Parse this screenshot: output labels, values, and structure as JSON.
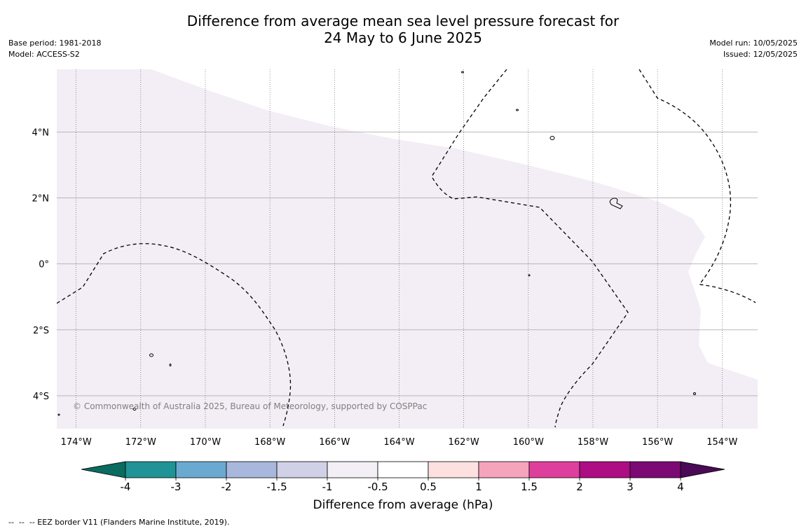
{
  "title_line1": "Difference from average mean sea level pressure forecast for",
  "title_line2": "24 May to 6 June 2025",
  "base_period": "Base period: 1981-2018",
  "model": "Model: ACCESS-S2",
  "model_run": "Model run: 10/05/2025",
  "issued": "Issued: 12/05/2025",
  "map": {
    "lon_range": [
      -174.6,
      -152.9
    ],
    "lat_range": [
      -5.0,
      5.9
    ],
    "lon_ticks": [
      "174°W",
      "172°W",
      "170°W",
      "168°W",
      "166°W",
      "164°W",
      "162°W",
      "160°W",
      "158°W",
      "156°W",
      "154°W"
    ],
    "lat_ticks": [
      "4°N",
      "2°N",
      "0°",
      "2°S",
      "4°S"
    ],
    "shaded_anomaly_range_hPa": "-1 to -0.5",
    "colors": {
      "shade": "#f3edf5",
      "grid": "#b0b0b0",
      "meridian": "#555555"
    }
  },
  "copyright": "© Commonwealth of Australia 2025, Bureau of Meteorology, supported by COSPPac",
  "colorbar": {
    "label": "Difference from average (hPa)",
    "ticks": [
      "-4",
      "-3",
      "-2",
      "-1.5",
      "-1",
      "-0.5",
      "0.5",
      "1",
      "1.5",
      "2",
      "3",
      "4"
    ],
    "low_extend_color": "#0a6b60",
    "high_extend_color": "#4a0a55",
    "bins": [
      {
        "range": "-4 to -3",
        "color": "#1f9396"
      },
      {
        "range": "-3 to -2",
        "color": "#6aaad0"
      },
      {
        "range": "-2 to -1.5",
        "color": "#a8b8dc"
      },
      {
        "range": "-1.5 to -1",
        "color": "#d0d0e6"
      },
      {
        "range": "-1 to -0.5",
        "color": "#f4eef7"
      },
      {
        "range": "-0.5 to 0.5",
        "color": "#ffffff"
      },
      {
        "range": "0.5 to 1",
        "color": "#fde0e0"
      },
      {
        "range": "1 to 1.5",
        "color": "#f6a3bc"
      },
      {
        "range": "1.5 to 2",
        "color": "#df3f9c"
      },
      {
        "range": "2 to 3",
        "color": "#ad0e83"
      },
      {
        "range": "3 to 4",
        "color": "#7b0a74"
      }
    ]
  },
  "footer": "--  --  -- EEZ border V11 (Flanders Marine Institute, 2019)."
}
